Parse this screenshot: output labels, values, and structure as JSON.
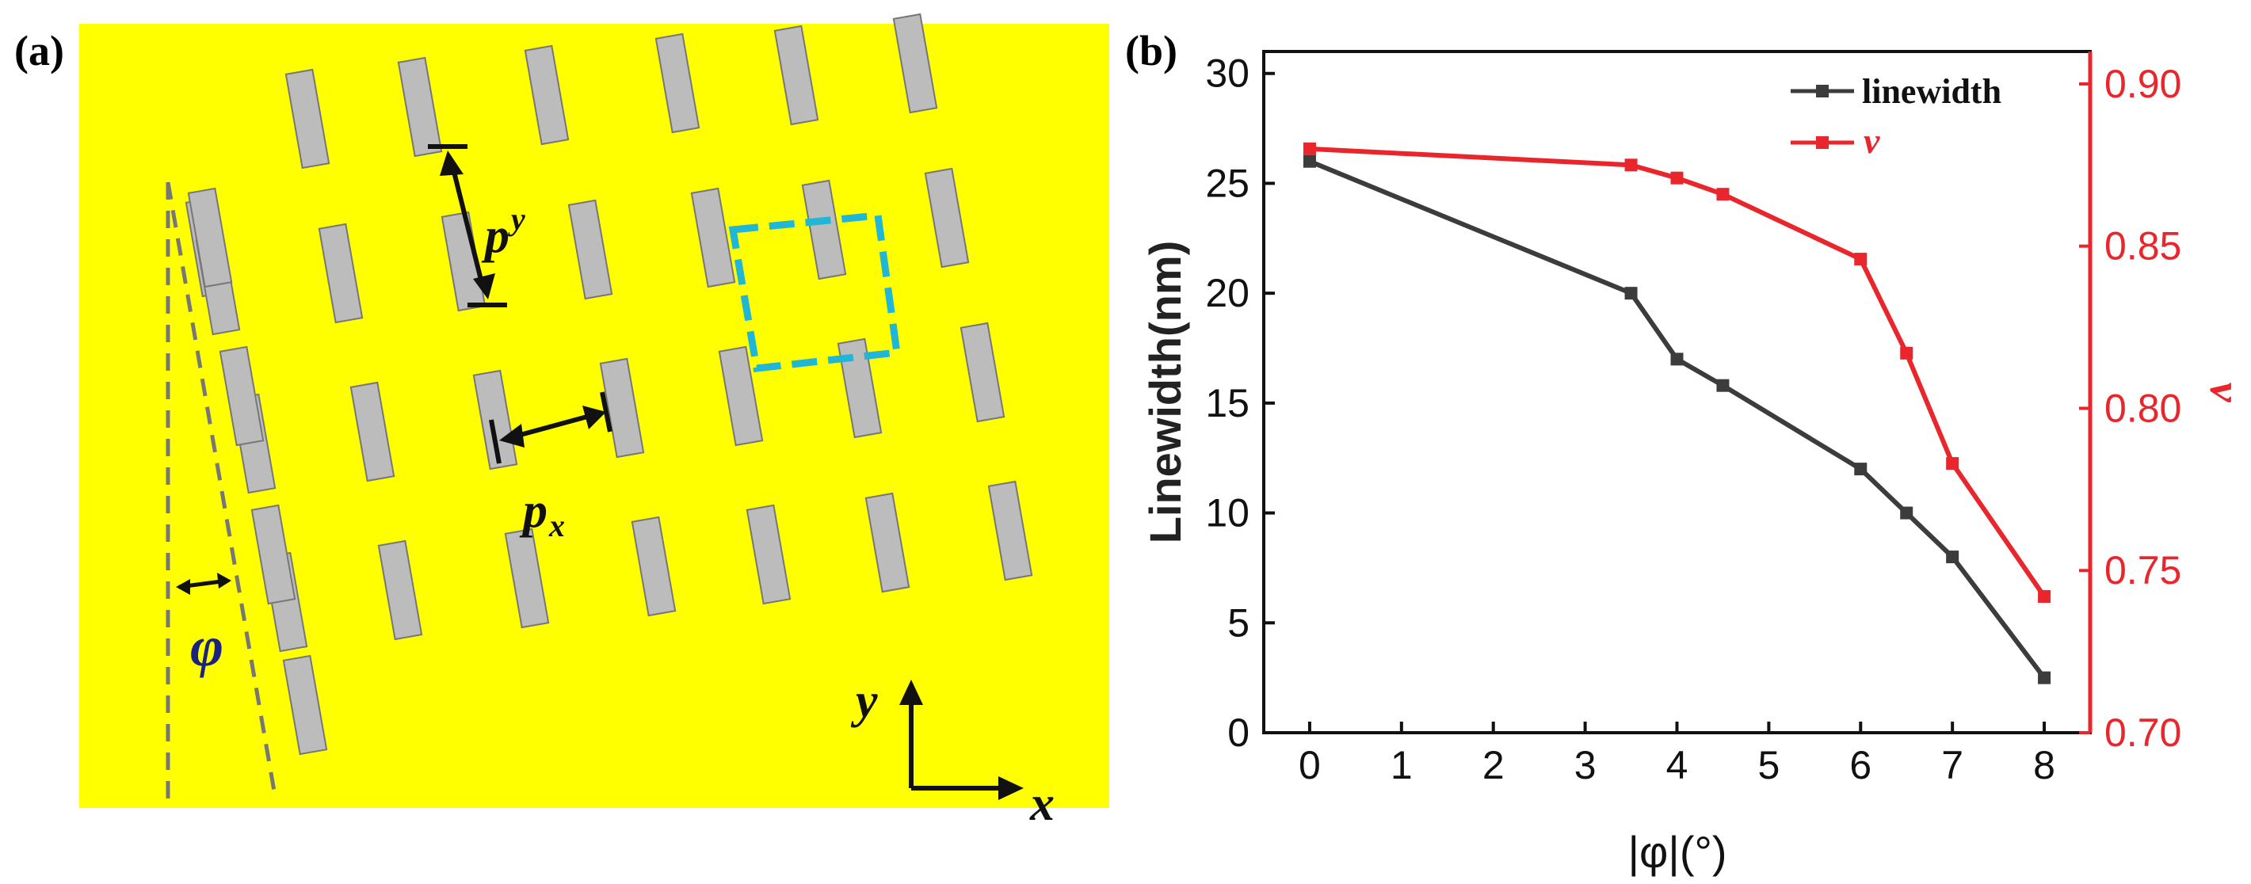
{
  "panel_a": {
    "label": "(a)",
    "background_color": "#ffff00",
    "rod_color": "#bcbcbc",
    "highlight_color": "#1fb6d8",
    "labels": {
      "py": "p",
      "py_sub": "y",
      "px": "p",
      "px_sub": "x",
      "phi": "φ",
      "y_axis": "y",
      "x_axis": "x"
    }
  },
  "panel_b": {
    "label": "(b)"
  },
  "chart_data": {
    "type": "line",
    "title": "",
    "xlabel": "|φ|(°)",
    "ylabel": "Linewidth(nm)",
    "y2label": "v",
    "x_ticks": [
      "0",
      "1",
      "2",
      "3",
      "4",
      "5",
      "6",
      "7",
      "8"
    ],
    "y_ticks": [
      "0",
      "5",
      "10",
      "15",
      "20",
      "25",
      "30"
    ],
    "y2_ticks": [
      "0.70",
      "0.75",
      "0.80",
      "0.85",
      "0.90"
    ],
    "xlim": [
      -0.5,
      8.5
    ],
    "ylim": [
      0,
      31
    ],
    "y2lim": [
      0.7,
      0.91
    ],
    "legend_position": "top-right",
    "series": [
      {
        "name": "linewidth",
        "axis": "left",
        "color": "#3c3c3c",
        "x": [
          0,
          3.5,
          4,
          4.5,
          6,
          6.5,
          7,
          8
        ],
        "y": [
          26,
          20,
          17,
          15.8,
          12,
          10,
          8,
          2.5
        ]
      },
      {
        "name": "v",
        "axis": "right",
        "color": "#e8262c",
        "x": [
          0,
          3.5,
          4,
          4.5,
          6,
          6.5,
          7,
          8
        ],
        "y": [
          0.88,
          0.875,
          0.871,
          0.866,
          0.846,
          0.817,
          0.783,
          0.742
        ]
      }
    ]
  }
}
